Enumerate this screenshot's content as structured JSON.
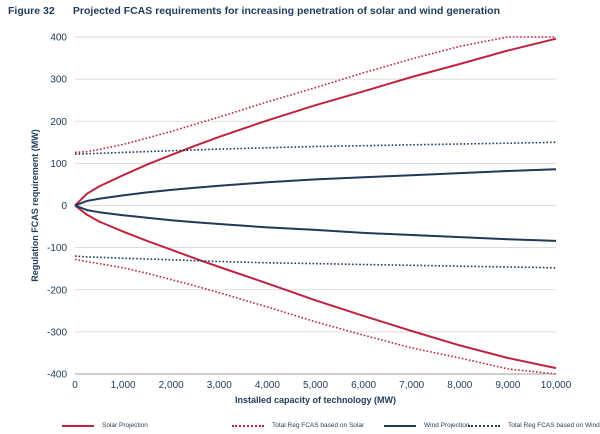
{
  "figure": {
    "number": "Figure 32",
    "title": "Projected FCAS requirements for increasing penetration of solar and wind generation"
  },
  "colors": {
    "solar": "#c0233e",
    "wind": "#1f3a5a",
    "grid": "#d3d3d3",
    "text": "#1f3a5a"
  },
  "chart_data": {
    "type": "line",
    "title": "Projected FCAS requirements for increasing penetration of solar and wind generation",
    "xlabel": "Installed capacity of technology (MW)",
    "ylabel": "Regulation FCAS requirement (MW)",
    "xlim": [
      0,
      10000
    ],
    "ylim": [
      -400,
      400
    ],
    "xticks": [
      0,
      1000,
      2000,
      3000,
      4000,
      5000,
      6000,
      7000,
      8000,
      9000,
      10000
    ],
    "xtick_labels": [
      "0",
      "1,000",
      "2,000",
      "3,000",
      "4,000",
      "5,000",
      "6,000",
      "7,000",
      "8,000",
      "9,000",
      "10,000"
    ],
    "yticks": [
      -400,
      -300,
      -200,
      -100,
      0,
      100,
      200,
      300,
      400
    ],
    "ytick_labels": [
      "-400",
      "-300",
      "-200",
      "-100",
      "0",
      "100",
      "200",
      "300",
      "400"
    ],
    "grid": "horizontal",
    "legend_position": "bottom",
    "x": [
      0,
      250,
      500,
      1000,
      1500,
      2000,
      2500,
      3000,
      4000,
      5000,
      6000,
      7000,
      8000,
      9000,
      10000
    ],
    "series": [
      {
        "name": "Solar Projection",
        "color": "#c0233e",
        "style": "solid",
        "values": [
          0,
          28,
          45,
          72,
          97,
          120,
          142,
          163,
          202,
          238,
          271,
          305,
          336,
          368,
          396
        ]
      },
      {
        "name": "Solar Projection",
        "color": "#c0233e",
        "style": "solid",
        "legend": false,
        "values": [
          0,
          -22,
          -38,
          -62,
          -84,
          -105,
          -126,
          -146,
          -185,
          -225,
          -262,
          -298,
          -332,
          -362,
          -386
        ]
      },
      {
        "name": "Total Reg FCAS based on Solar",
        "color": "#c0233e",
        "style": "dotted",
        "values": [
          126,
          128,
          133,
          145,
          160,
          176,
          193,
          210,
          246,
          280,
          315,
          348,
          378,
          400,
          412
        ]
      },
      {
        "name": "Total Reg FCAS based on Solar",
        "color": "#c0233e",
        "style": "dotted",
        "legend": false,
        "values": [
          -128,
          -133,
          -138,
          -148,
          -161,
          -176,
          -191,
          -207,
          -241,
          -276,
          -308,
          -338,
          -362,
          -388,
          -408
        ]
      },
      {
        "name": "Wind Projection",
        "color": "#1f3a5a",
        "style": "solid",
        "values": [
          0,
          11,
          16,
          24,
          31,
          37,
          42,
          47,
          55,
          62,
          67,
          72,
          77,
          82,
          86
        ]
      },
      {
        "name": "Wind Projection",
        "color": "#1f3a5a",
        "style": "solid",
        "legend": false,
        "values": [
          0,
          -11,
          -16,
          -23,
          -29,
          -35,
          -40,
          -44,
          -52,
          -58,
          -65,
          -70,
          -75,
          -80,
          -84
        ]
      },
      {
        "name": "Total Reg FCAS based on Wind",
        "color": "#1f3a5a",
        "style": "dotted",
        "values": [
          122,
          123,
          124,
          126,
          128,
          130,
          132,
          134,
          137,
          140,
          142,
          144,
          146,
          148,
          150
        ]
      },
      {
        "name": "Total Reg FCAS based on Wind",
        "color": "#1f3a5a",
        "style": "dotted",
        "legend": false,
        "values": [
          -120,
          -122,
          -123,
          -125,
          -127,
          -129,
          -131,
          -133,
          -136,
          -138,
          -140,
          -142,
          -144,
          -146,
          -148
        ]
      }
    ]
  }
}
